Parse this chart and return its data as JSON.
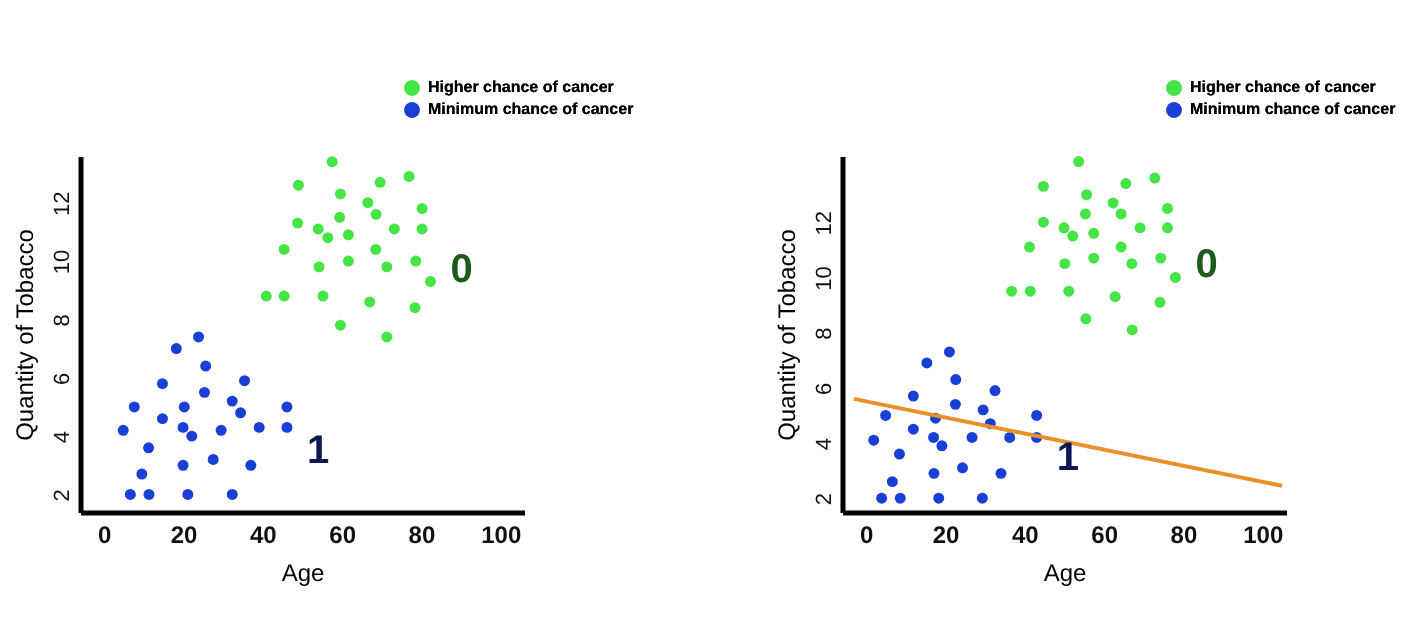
{
  "chart_data": [
    {
      "type": "scatter",
      "xlabel": "Age",
      "ylabel": "Quantity of Tobacco",
      "xlim": [
        -6,
        106
      ],
      "ylim": [
        1.4,
        13.6
      ],
      "xticks": [
        0,
        20,
        40,
        60,
        80,
        100
      ],
      "yticks": [
        2,
        4,
        6,
        8,
        10,
        12
      ],
      "legend": "top right",
      "marker": "circle",
      "series": [
        {
          "name": "Higher chance of cancer",
          "color": "#44e544",
          "x": [
            57.6,
            49.1,
            69.7,
            77.0,
            59.7,
            66.6,
            80.3,
            48.9,
            59.5,
            68.7,
            54.1,
            56.5,
            61.7,
            73.3,
            80.3,
            45.5,
            68.6,
            54.3,
            61.7,
            71.4,
            78.7,
            82.4,
            41.0,
            45.5,
            55.3,
            67.1,
            78.5,
            59.7,
            71.4
          ],
          "values": [
            13.4,
            12.6,
            12.7,
            12.9,
            12.3,
            12.0,
            11.8,
            11.3,
            11.5,
            11.6,
            11.1,
            10.8,
            10.9,
            11.1,
            11.1,
            10.4,
            10.4,
            9.8,
            10.0,
            9.8,
            10.0,
            9.3,
            8.8,
            8.8,
            8.8,
            8.6,
            8.4,
            7.8,
            7.4
          ]
        },
        {
          "name": "Minimum chance of cancer",
          "color": "#1a3fd6",
          "x": [
            23.9,
            18.3,
            25.7,
            14.8,
            35.5,
            25.4,
            7.7,
            20.3,
            32.4,
            46.2,
            14.8,
            34.5,
            4.9,
            20.0,
            22.2,
            29.6,
            39.2,
            46.2,
            11.3,
            27.6,
            20.0,
            37.1,
            9.6,
            6.7,
            11.4,
            21.2,
            32.4
          ],
          "values": [
            7.4,
            7.0,
            6.4,
            5.8,
            5.9,
            5.5,
            5.0,
            5.0,
            5.2,
            5.0,
            4.6,
            4.8,
            4.2,
            4.3,
            4.0,
            4.2,
            4.3,
            4.3,
            3.6,
            3.2,
            3.0,
            3.0,
            2.7,
            2.0,
            2.0,
            2.0,
            2.0
          ]
        }
      ],
      "annotations": [
        "0",
        "1"
      ]
    },
    {
      "type": "scatter",
      "xlabel": "Age",
      "ylabel": "Quantity of Tobacco",
      "xlim": [
        -6,
        106
      ],
      "ylim": [
        1.5,
        14.4
      ],
      "xticks": [
        0,
        20,
        40,
        60,
        80,
        100
      ],
      "yticks": [
        2,
        4,
        6,
        8,
        10,
        12
      ],
      "legend": "top right",
      "marker": "circle",
      "series": [
        {
          "name": "Higher chance of cancer",
          "color": "#44e544",
          "x": [
            53.7,
            44.8,
            65.6,
            72.9,
            55.7,
            62.4,
            76.1,
            44.8,
            55.4,
            64.4,
            50.0,
            52.2,
            57.5,
            69.2,
            76.1,
            41.3,
            64.4,
            50.2,
            57.5,
            67.1,
            74.4,
            78.1,
            36.8,
            41.5,
            51.2,
            62.9,
            74.2,
            55.5,
            67.2
          ],
          "values": [
            14.2,
            13.3,
            13.4,
            13.6,
            13.0,
            12.7,
            12.5,
            12.0,
            12.3,
            12.3,
            11.8,
            11.5,
            11.6,
            11.8,
            11.8,
            11.1,
            11.1,
            10.5,
            10.7,
            10.5,
            10.7,
            10.0,
            9.5,
            9.5,
            9.5,
            9.3,
            9.1,
            8.5,
            8.1
          ]
        },
        {
          "name": "Minimum chance of cancer",
          "color": "#1a3fd6",
          "x": [
            21.1,
            15.4,
            22.7,
            12.0,
            32.6,
            22.6,
            5.0,
            17.6,
            29.6,
            43.1,
            12.0,
            31.4,
            2.0,
            17.1,
            19.2,
            26.8,
            36.3,
            43.1,
            8.5,
            24.4,
            17.2,
            34.1,
            6.7,
            4.0,
            8.7,
            18.4,
            29.4
          ],
          "values": [
            7.3,
            6.9,
            6.3,
            5.7,
            5.9,
            5.4,
            5.0,
            4.9,
            5.2,
            5.0,
            4.5,
            4.7,
            4.1,
            4.2,
            3.9,
            4.2,
            4.2,
            4.2,
            3.6,
            3.1,
            2.9,
            2.9,
            2.6,
            2.0,
            2.0,
            2.0,
            2.0
          ]
        },
        {
          "type": "line",
          "color": "#e8912a",
          "marker": "none",
          "x": [
            -3,
            105
          ],
          "values": [
            5.6,
            2.45
          ]
        }
      ],
      "annotations": [
        "0",
        "1"
      ]
    }
  ]
}
